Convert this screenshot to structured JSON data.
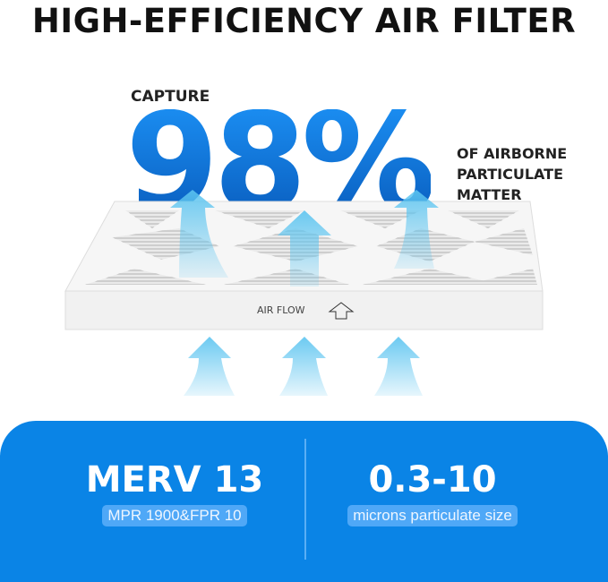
{
  "title": "HIGH-EFFICIENCY AIR FILTER",
  "headline": {
    "prefix": "CAPTURE",
    "value": "98%",
    "suffix_lines": [
      "OF AIRBORNE",
      "PARTICULATE",
      "MATTER"
    ]
  },
  "filter": {
    "label": "AIR FLOW",
    "arrow_icon": "outline-up-arrow-icon"
  },
  "specs": [
    {
      "value": "MERV 13",
      "caption": "MPR 1900&FPR 10"
    },
    {
      "value": "0.3-10",
      "caption": "microns particulate size"
    }
  ],
  "colors": {
    "accent": "#0a84e6",
    "pill": "#4fa8f7",
    "arrow": "#5bc4f0"
  }
}
